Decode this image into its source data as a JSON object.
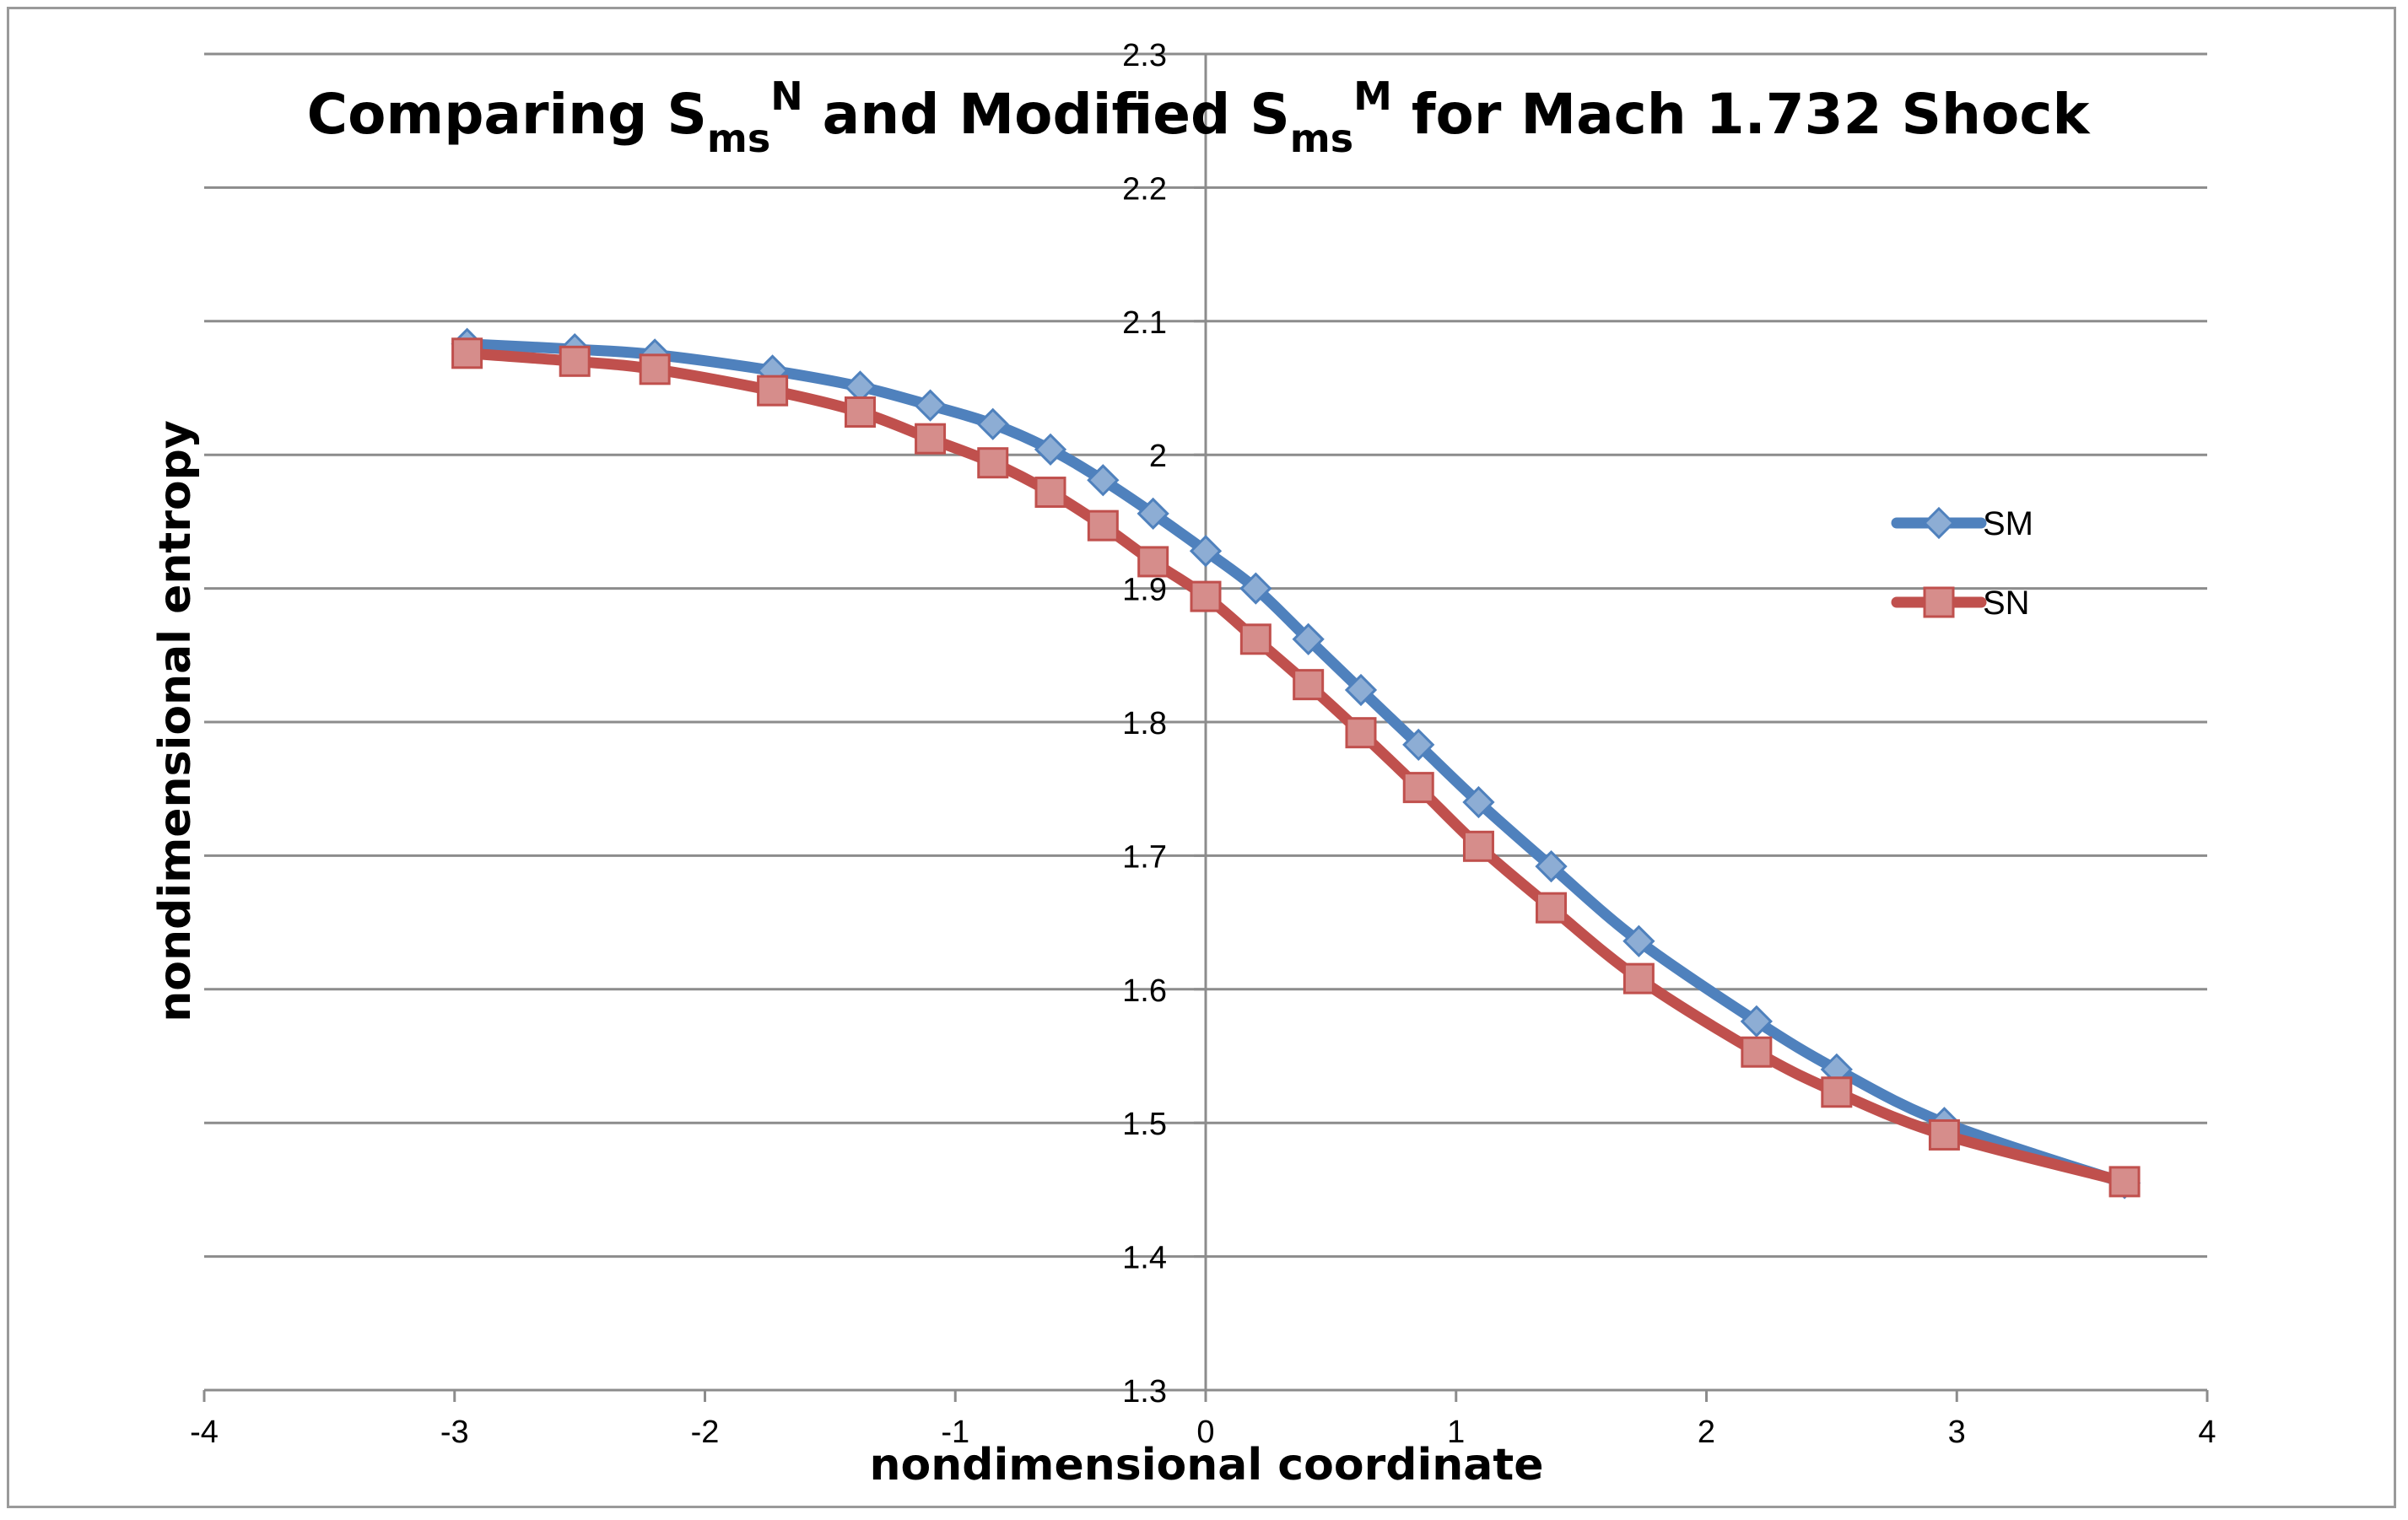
{
  "chart_data": {
    "type": "line",
    "title": {
      "prefix": "Comparing S",
      "sub1": "ms",
      "sup1": "N",
      "middle": " and Modified S",
      "sub2": "ms",
      "sup2": "M",
      "suffix": " for Mach 1.732 Shock"
    },
    "xlabel": "nondimensional coordinate",
    "ylabel": "nondimensional entropy",
    "xlim": [
      -4,
      4
    ],
    "ylim": [
      1.3,
      2.3
    ],
    "x_ticks": [
      "-4",
      "-3",
      "-2",
      "-1",
      "0",
      "1",
      "2",
      "3",
      "4"
    ],
    "y_ticks": [
      "1.3",
      "1.4",
      "1.5",
      "1.6",
      "1.7",
      "1.8",
      "1.9",
      "2",
      "2.1",
      "2.2",
      "2.3"
    ],
    "grid": true,
    "legend_position": "right",
    "series": [
      {
        "name": "SM",
        "color": "#4f81bd",
        "marker": "diamond",
        "x": [
          -2.95,
          -2.52,
          -2.2,
          -1.73,
          -1.38,
          -1.1,
          -0.85,
          -0.62,
          -0.41,
          -0.21,
          0.0,
          0.2,
          0.41,
          0.62,
          0.85,
          1.09,
          1.38,
          1.73,
          2.2,
          2.52,
          2.95,
          3.67
        ],
        "y": [
          2.083,
          2.079,
          2.075,
          2.063,
          2.051,
          2.037,
          2.023,
          2.004,
          1.981,
          1.956,
          1.928,
          1.9,
          1.862,
          1.824,
          1.783,
          1.74,
          1.692,
          1.636,
          1.576,
          1.54,
          1.5,
          1.455
        ]
      },
      {
        "name": "SN",
        "color": "#c0504d",
        "marker": "square",
        "x": [
          -2.95,
          -2.52,
          -2.2,
          -1.73,
          -1.38,
          -1.1,
          -0.85,
          -0.62,
          -0.41,
          -0.21,
          0.0,
          0.2,
          0.41,
          0.62,
          0.85,
          1.09,
          1.38,
          1.73,
          2.2,
          2.52,
          2.95,
          3.67
        ],
        "y": [
          2.076,
          2.07,
          2.064,
          2.048,
          2.032,
          2.012,
          1.994,
          1.972,
          1.947,
          1.92,
          1.894,
          1.862,
          1.828,
          1.792,
          1.751,
          1.707,
          1.661,
          1.608,
          1.553,
          1.523,
          1.491,
          1.456
        ]
      }
    ]
  }
}
